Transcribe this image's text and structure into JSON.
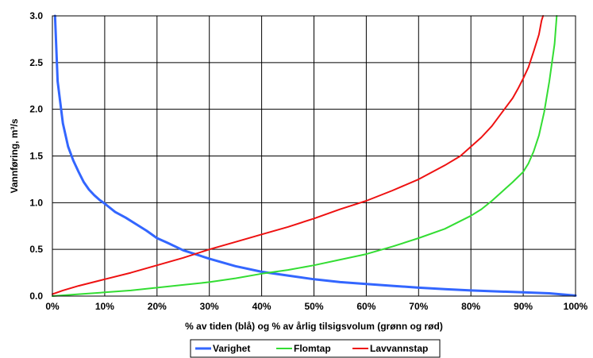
{
  "chart_data": {
    "type": "line",
    "title": "",
    "xlabel": "% av tiden (blå) og % av årlig tilsigsvolum (grønn og rød)",
    "ylabel": "Vannføring, m³/s",
    "xlim": [
      0,
      100
    ],
    "ylim": [
      0,
      3.0
    ],
    "x_ticks": [
      "0%",
      "10%",
      "20%",
      "30%",
      "40%",
      "50%",
      "60%",
      "70%",
      "80%",
      "90%",
      "100%"
    ],
    "y_ticks": [
      "0.0",
      "0.5",
      "1.0",
      "1.5",
      "2.0",
      "2.5",
      "3.0"
    ],
    "grid": true,
    "legend_position": "bottom",
    "series": [
      {
        "name": "Varighet",
        "color": "#3366ff",
        "points": [
          [
            0.5,
            3.0
          ],
          [
            1,
            2.3
          ],
          [
            2,
            1.85
          ],
          [
            3,
            1.6
          ],
          [
            4,
            1.45
          ],
          [
            5,
            1.33
          ],
          [
            6,
            1.22
          ],
          [
            7,
            1.14
          ],
          [
            8,
            1.08
          ],
          [
            9,
            1.03
          ],
          [
            10,
            0.99
          ],
          [
            12,
            0.9
          ],
          [
            14,
            0.84
          ],
          [
            16,
            0.77
          ],
          [
            18,
            0.7
          ],
          [
            20,
            0.62
          ],
          [
            22,
            0.57
          ],
          [
            25,
            0.49
          ],
          [
            30,
            0.4
          ],
          [
            35,
            0.32
          ],
          [
            40,
            0.26
          ],
          [
            45,
            0.22
          ],
          [
            50,
            0.18
          ],
          [
            55,
            0.15
          ],
          [
            60,
            0.13
          ],
          [
            65,
            0.11
          ],
          [
            70,
            0.09
          ],
          [
            75,
            0.075
          ],
          [
            80,
            0.06
          ],
          [
            85,
            0.05
          ],
          [
            90,
            0.04
          ],
          [
            95,
            0.03
          ],
          [
            100,
            0.005
          ]
        ]
      },
      {
        "name": "Flomtap",
        "color": "#33dd33",
        "points": [
          [
            0,
            0
          ],
          [
            5,
            0.02
          ],
          [
            10,
            0.04
          ],
          [
            15,
            0.06
          ],
          [
            20,
            0.09
          ],
          [
            25,
            0.12
          ],
          [
            30,
            0.15
          ],
          [
            35,
            0.19
          ],
          [
            40,
            0.24
          ],
          [
            45,
            0.28
          ],
          [
            50,
            0.33
          ],
          [
            55,
            0.39
          ],
          [
            60,
            0.45
          ],
          [
            65,
            0.53
          ],
          [
            70,
            0.62
          ],
          [
            75,
            0.72
          ],
          [
            80,
            0.86
          ],
          [
            82,
            0.93
          ],
          [
            84,
            1.02
          ],
          [
            86,
            1.12
          ],
          [
            88,
            1.22
          ],
          [
            90,
            1.33
          ],
          [
            91,
            1.42
          ],
          [
            92,
            1.55
          ],
          [
            93,
            1.72
          ],
          [
            94,
            1.97
          ],
          [
            95,
            2.3
          ],
          [
            95.5,
            2.5
          ],
          [
            96,
            2.7
          ],
          [
            96.4,
            3.0
          ]
        ]
      },
      {
        "name": "Lavvannstap",
        "color": "#ee1111",
        "points": [
          [
            0,
            0.02
          ],
          [
            2,
            0.06
          ],
          [
            5,
            0.11
          ],
          [
            10,
            0.18
          ],
          [
            15,
            0.25
          ],
          [
            20,
            0.33
          ],
          [
            25,
            0.41
          ],
          [
            30,
            0.5
          ],
          [
            35,
            0.58
          ],
          [
            40,
            0.66
          ],
          [
            45,
            0.74
          ],
          [
            50,
            0.83
          ],
          [
            55,
            0.93
          ],
          [
            60,
            1.02
          ],
          [
            65,
            1.13
          ],
          [
            70,
            1.25
          ],
          [
            75,
            1.4
          ],
          [
            78,
            1.5
          ],
          [
            80,
            1.6
          ],
          [
            82,
            1.7
          ],
          [
            84,
            1.82
          ],
          [
            86,
            1.97
          ],
          [
            88,
            2.12
          ],
          [
            89,
            2.22
          ],
          [
            90,
            2.33
          ],
          [
            91,
            2.45
          ],
          [
            92,
            2.62
          ],
          [
            93,
            2.8
          ],
          [
            93.5,
            2.95
          ],
          [
            93.8,
            3.0
          ]
        ]
      }
    ]
  }
}
